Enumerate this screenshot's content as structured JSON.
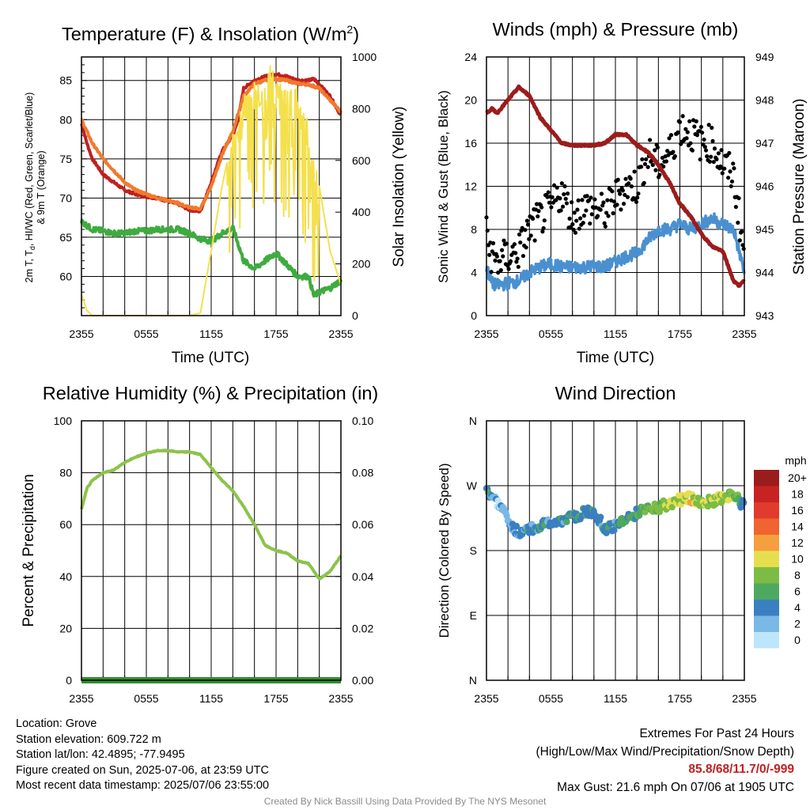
{
  "charts": {
    "temp": {
      "title": "Temperature (F) & Insolation (W/m",
      "title_sup": "2",
      "title_close": ")",
      "ylabel_left_line1": "2m T, T",
      "ylabel_left_sub": "d",
      "ylabel_left_rest": ", HI/WC (Red, Green, Scarlet/Blue)",
      "ylabel_left_line2": "& 9m T (Orange)",
      "ylabel_right": "Solar Insolation (Yellow)",
      "xlabel": "Time (UTC)"
    },
    "winds": {
      "title": "Winds (mph) & Pressure (mb)",
      "ylabel_left": "Sonic Wind & Gust (Blue, Black)",
      "ylabel_right": "Station Pressure (Maroon)",
      "xlabel": "Time (UTC)"
    },
    "rh": {
      "title": "Relative Humidity (%) & Precipitation (in)",
      "ylabel_left": "Percent & Precipitation"
    },
    "wdir": {
      "title": "Wind Direction",
      "ylabel_left": "Direction (Colored By Speed)",
      "legend_title": "mph",
      "legend_labels": [
        "20+",
        "18",
        "16",
        "14",
        "12",
        "10",
        "8",
        "6",
        "4",
        "2",
        "0"
      ],
      "legend_colors": [
        "#9b1c1c",
        "#c82323",
        "#e03b2c",
        "#ef6430",
        "#f59f3e",
        "#e5df4f",
        "#7cbc45",
        "#4fa860",
        "#3a80c0",
        "#7ab8e6",
        "#bde6fa"
      ]
    }
  },
  "chart_data": [
    {
      "type": "line",
      "title": "Temperature (F) & Insolation (W/m2)",
      "xlabel": "Time (UTC)",
      "ylabel": "2m T, Td, HI/WC (Red, Green, Scarlet/Blue) & 9m T (Orange)",
      "y2label": "Solar Insolation (Yellow)",
      "x_ticks": [
        "2355",
        "0555",
        "1155",
        "1755",
        "2355"
      ],
      "xlim": [
        0,
        24
      ],
      "ylim": [
        55,
        88
      ],
      "y_ticks": [
        "60",
        "65",
        "70",
        "75",
        "80",
        "85"
      ],
      "y2lim": [
        0,
        1000
      ],
      "y2_ticks": [
        "0",
        "200",
        "400",
        "600",
        "800",
        "1000"
      ],
      "series": [
        {
          "name": "2m T",
          "color": "#c0201f",
          "axis": "left",
          "x": [
            0,
            0.5,
            1,
            2,
            3,
            4,
            5,
            6,
            7,
            8,
            9,
            10,
            11,
            12,
            13,
            14,
            14.5,
            15,
            16,
            17,
            18,
            19,
            20,
            21,
            21.5,
            22,
            23,
            24
          ],
          "y": [
            79.5,
            77,
            75,
            73,
            72,
            71,
            70.5,
            70.2,
            70,
            69.6,
            69.2,
            68.5,
            68.3,
            72,
            76,
            78,
            80,
            84,
            85,
            85.5,
            85.8,
            85.5,
            85,
            85,
            85.2,
            84.5,
            83,
            80.5
          ]
        },
        {
          "name": "9m T",
          "color": "#ef7a2e",
          "axis": "left",
          "x": [
            0,
            1,
            2,
            3,
            4,
            5,
            6,
            7,
            8,
            9,
            10,
            11,
            12,
            13,
            14,
            15,
            16,
            17,
            18,
            19,
            20,
            21,
            22,
            23,
            24
          ],
          "y": [
            80,
            77,
            75,
            73.5,
            72,
            71,
            70.5,
            70,
            69.7,
            69.3,
            68.8,
            68.6,
            71.5,
            75.5,
            78.5,
            83,
            84.6,
            85,
            85.2,
            85,
            84.6,
            84.5,
            84,
            82.5,
            81
          ]
        },
        {
          "name": "2m Td",
          "color": "#3fab3f",
          "axis": "left",
          "x": [
            0,
            1,
            2,
            3,
            4,
            5,
            6,
            7,
            8,
            9,
            10,
            11,
            12,
            13,
            14,
            15,
            16,
            17,
            18,
            19,
            20,
            21,
            21.5,
            22,
            23,
            24
          ],
          "y": [
            67,
            66,
            65.8,
            65.5,
            65.5,
            65.8,
            65.8,
            66,
            66,
            66,
            65.5,
            64.8,
            64.5,
            65.5,
            66.2,
            62,
            61,
            62,
            63,
            61.5,
            60,
            60,
            57.5,
            58,
            58.5,
            59.5
          ]
        },
        {
          "name": "Solar Insolation",
          "color": "#f4e04d",
          "axis": "right",
          "x": [
            0,
            0.5,
            1,
            2,
            3,
            4,
            5,
            6,
            7,
            8,
            9,
            10,
            11,
            12,
            13,
            14,
            14.5,
            15,
            16,
            17,
            17.5,
            18,
            19,
            20,
            21,
            22,
            23,
            24
          ],
          "y": [
            80,
            20,
            0,
            0,
            0,
            0,
            0,
            0,
            0,
            0,
            0,
            0,
            10,
            250,
            500,
            700,
            780,
            850,
            900,
            950,
            980,
            920,
            880,
            880,
            750,
            500,
            250,
            120
          ]
        }
      ]
    },
    {
      "type": "line",
      "title": "Winds (mph) & Pressure (mb)",
      "xlabel": "Time (UTC)",
      "ylabel": "Sonic Wind & Gust (Blue, Black)",
      "y2label": "Station Pressure (Maroon)",
      "x_ticks": [
        "2355",
        "0555",
        "1155",
        "1755",
        "2355"
      ],
      "xlim": [
        0,
        24
      ],
      "ylim": [
        0,
        24
      ],
      "y_ticks": [
        "0",
        "4",
        "8",
        "12",
        "16",
        "20",
        "24"
      ],
      "y2lim": [
        943,
        949
      ],
      "y2_ticks": [
        "943",
        "944",
        "945",
        "946",
        "947",
        "948",
        "949"
      ],
      "series": [
        {
          "name": "Sonic Wind",
          "color": "#4a90d0",
          "axis": "left",
          "x": [
            0,
            0.5,
            1,
            2,
            3,
            4,
            5,
            6,
            7,
            8,
            9,
            10,
            11,
            12,
            13,
            14,
            15,
            16,
            17,
            18,
            19,
            20,
            21,
            22,
            23,
            24
          ],
          "y": [
            4.5,
            3,
            2.8,
            3,
            3.2,
            4,
            4.5,
            4.8,
            4.5,
            4.5,
            4.5,
            4.6,
            4.5,
            5,
            5.5,
            5.8,
            7,
            8,
            8,
            8.5,
            8,
            8.5,
            9,
            8.5,
            8,
            4
          ]
        },
        {
          "name": "Gust",
          "color": "#000000",
          "axis": "left",
          "style": "dots",
          "x": [
            0,
            0.5,
            1,
            2,
            3,
            4,
            5,
            6,
            7,
            8,
            9,
            10,
            11,
            12,
            13,
            14,
            15,
            16,
            17,
            18,
            19,
            20,
            21,
            22,
            23,
            24
          ],
          "y": [
            7.5,
            5.5,
            5,
            5.5,
            6,
            8,
            9,
            10,
            11.5,
            9,
            10,
            10,
            9.5,
            11,
            12,
            12,
            15,
            14,
            15,
            17.5,
            17,
            16,
            16,
            14,
            13,
            5.5
          ]
        },
        {
          "name": "Station Pressure",
          "color": "#9b1c1c",
          "axis": "right",
          "x": [
            0,
            0.5,
            1,
            2,
            3,
            4,
            5,
            6,
            7,
            8,
            9,
            10,
            11,
            12,
            13,
            14,
            15,
            16,
            17,
            18,
            19,
            20,
            21,
            22,
            23,
            23.5,
            24
          ],
          "y": [
            947.7,
            947.8,
            947.7,
            948,
            948.3,
            948.1,
            947.6,
            947.3,
            947,
            946.95,
            946.95,
            946.95,
            947,
            947.2,
            947.2,
            946.95,
            946.8,
            946.5,
            946.1,
            945.6,
            945.3,
            944.9,
            944.6,
            944.5,
            943.8,
            943.7,
            943.8
          ]
        }
      ]
    },
    {
      "type": "line",
      "title": "Relative Humidity (%) & Precipitation (in)",
      "ylabel": "Percent & Precipitation",
      "x_ticks": [
        "2355",
        "0555",
        "1155",
        "1755",
        "2355"
      ],
      "xlim": [
        0,
        24
      ],
      "ylim": [
        0,
        100
      ],
      "y_ticks": [
        "0",
        "20",
        "40",
        "60",
        "80",
        "100"
      ],
      "y2lim": [
        0,
        0.1
      ],
      "y2_ticks": [
        "0.00",
        "0.02",
        "0.04",
        "0.06",
        "0.08",
        "0.10"
      ],
      "series": [
        {
          "name": "Relative Humidity",
          "color": "#8cc34a",
          "axis": "left",
          "x": [
            0,
            0.5,
            1,
            2,
            3,
            4,
            5,
            6,
            7,
            8,
            9,
            10,
            11,
            12,
            13,
            14,
            15,
            16,
            17,
            18,
            19,
            20,
            21,
            21.5,
            22,
            23,
            24
          ],
          "y": [
            66,
            74,
            77,
            80,
            81,
            84,
            86,
            87.5,
            88.5,
            88.5,
            88,
            88,
            87,
            82,
            77,
            73,
            67,
            60,
            52,
            50,
            49,
            46,
            45,
            42,
            39,
            42,
            48
          ]
        },
        {
          "name": "Precipitation",
          "color": "#2f8f2f",
          "axis": "right",
          "x": [
            0,
            24
          ],
          "y": [
            0,
            0
          ]
        }
      ]
    },
    {
      "type": "scatter",
      "title": "Wind Direction",
      "ylabel": "Direction (Colored By Speed)",
      "x_ticks": [
        "2355",
        "0555",
        "1155",
        "1755",
        "2355"
      ],
      "xlim": [
        0,
        24
      ],
      "y_ticks": [
        "N",
        "E",
        "S",
        "W",
        "N"
      ],
      "ylim": [
        0,
        360
      ],
      "legend_title": "mph",
      "series": [
        {
          "name": "Direction",
          "x": [
            0,
            0.5,
            1,
            1.5,
            2,
            2.5,
            3,
            3.5,
            4,
            5,
            6,
            7,
            8,
            9,
            10,
            11,
            12,
            13,
            14,
            15,
            16,
            17,
            18,
            19,
            20,
            21,
            22,
            23,
            23.5,
            24
          ],
          "y": [
            262,
            255,
            245,
            235,
            225,
            210,
            205,
            207,
            210,
            215,
            218,
            222,
            225,
            232,
            235,
            210,
            215,
            223,
            232,
            240,
            240,
            245,
            250,
            253,
            248,
            248,
            253,
            257,
            250,
            240
          ],
          "speed": [
            5,
            3,
            2,
            2,
            2,
            3,
            4,
            4,
            4,
            4,
            4,
            4,
            5,
            4,
            4,
            4,
            4,
            5,
            6,
            7,
            8,
            9,
            9,
            10,
            9,
            8,
            9,
            8,
            7,
            4
          ]
        }
      ]
    }
  ],
  "info": {
    "location": "Location: Grove",
    "elevation": "Station elevation: 609.722 m",
    "latlon": "Station lat/lon: 42.4895; -77.9495",
    "created": "Figure created on Sun, 2025-07-06, at 23:59 UTC",
    "recent": "Most recent data timestamp: 2025/07/06 23:55:00"
  },
  "extremes": {
    "heading": "Extremes For Past 24 Hours",
    "subheading": "(High/Low/Max Wind/Precipitation/Snow Depth)",
    "values": "85.8/68/11.7/0/-999",
    "max_gust": "Max Gust: 21.6 mph On 07/06 at 1905 UTC"
  },
  "credit": "Created By Nick Bassill Using Data Provided By The NYS Mesonet"
}
